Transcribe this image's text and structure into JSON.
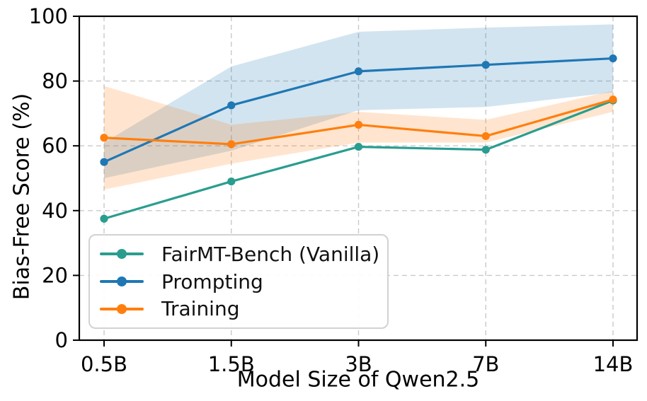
{
  "chart_data": {
    "type": "line",
    "title": "",
    "xlabel": "Model Size of Qwen2.5",
    "ylabel": "Bias-Free Score (%)",
    "categories": [
      "0.5B",
      "1.5B",
      "3B",
      "7B",
      "14B"
    ],
    "ylim": [
      0,
      100
    ],
    "yticks": [
      0,
      20,
      40,
      60,
      80,
      100
    ],
    "grid": {
      "show": true,
      "style": "dashed",
      "color": "#c9c9c9",
      "axes": "both"
    },
    "legend_position": "lower-left",
    "axis_color": "#000000",
    "series": [
      {
        "name": "FairMT-Bench (Vanilla)",
        "color": "#2a9d8f",
        "values": [
          37.5,
          49.0,
          59.7,
          58.8,
          74.0
        ],
        "band": null
      },
      {
        "name": "Prompting",
        "color": "#1f77b4",
        "values": [
          55.0,
          72.5,
          83.0,
          85.0,
          87.0
        ],
        "band": {
          "low": [
            50.0,
            58.5,
            71.0,
            72.0,
            76.5
          ],
          "high": [
            61.0,
            84.5,
            95.2,
            96.5,
            97.5
          ],
          "opacity": 0.2
        }
      },
      {
        "name": "Training",
        "color": "#ff7f0e",
        "values": [
          62.5,
          60.5,
          66.5,
          63.0,
          74.3
        ],
        "band": {
          "low": [
            46.5,
            54.5,
            61.0,
            61.0,
            70.5
          ],
          "high": [
            78.5,
            66.5,
            70.5,
            68.0,
            77.0
          ],
          "opacity": 0.2
        }
      }
    ]
  }
}
